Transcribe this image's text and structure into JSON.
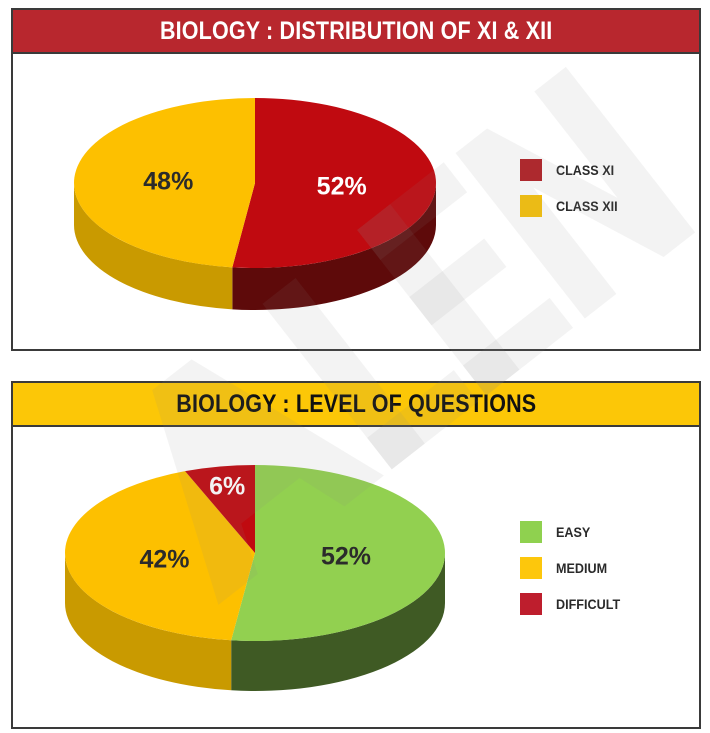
{
  "charts": [
    {
      "header": "BIOLOGY : DISTRIBUTION OF XI & XII",
      "legend": [
        {
          "label": "CLASS XI",
          "color": "#b11f24"
        },
        {
          "label": "CLASS XII",
          "color": "#f6c10a"
        }
      ]
    },
    {
      "header": "BIOLOGY : LEVEL OF QUESTIONS",
      "legend": [
        {
          "label": "EASY",
          "color": "#8fd14f"
        },
        {
          "label": "MEDIUM",
          "color": "#fdc70c"
        },
        {
          "label": "DIFFICULT",
          "color": "#be1e2d"
        }
      ]
    }
  ],
  "chart_data": [
    {
      "type": "pie",
      "title": "BIOLOGY : DISTRIBUTION OF XI & XII",
      "labels": [
        "CLASS XI",
        "CLASS XII"
      ],
      "values": [
        52,
        48
      ],
      "data_labels": [
        "52%",
        "48%"
      ],
      "colors": [
        "#c00a10",
        "#fdc000"
      ],
      "side_colors": [
        "#5e0a0a",
        "#c99a00"
      ],
      "legend_position": "right"
    },
    {
      "type": "pie",
      "title": "BIOLOGY : LEVEL OF QUESTIONS",
      "labels": [
        "EASY",
        "MEDIUM",
        "DIFFICULT"
      ],
      "values": [
        52,
        42,
        6
      ],
      "data_labels": [
        "52%",
        "42%",
        "6%"
      ],
      "colors": [
        "#92d050",
        "#fdc000",
        "#c00a10"
      ],
      "side_colors": [
        "#3f5a24",
        "#c99a00",
        "#5e0a0a"
      ],
      "legend_position": "right"
    }
  ]
}
